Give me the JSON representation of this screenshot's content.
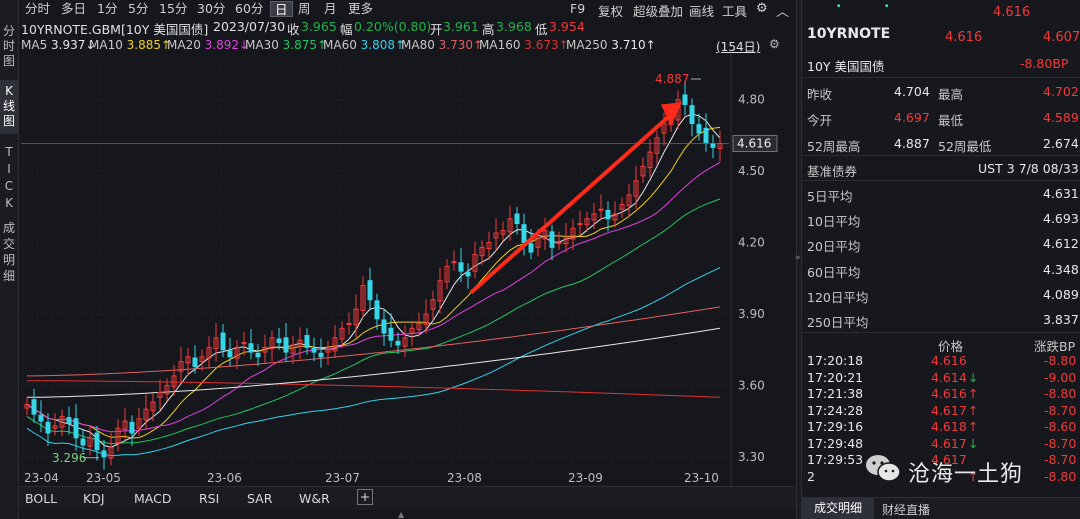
{
  "vtabs": {
    "fenshi": "分时图",
    "kline": "K线图",
    "tick": "TICK",
    "deals": "成交明细"
  },
  "periods": [
    "分时",
    "多日",
    "1分",
    "5分",
    "15分",
    "30分",
    "60分",
    "日",
    "周",
    "月",
    "更多"
  ],
  "active_period": "日",
  "toolbar": {
    "f9": "F9",
    "fuquan": "复权",
    "overlay": "超级叠加",
    "draw": "画线",
    "tools": "工具"
  },
  "info": {
    "symbol": "10YRNOTE.GBM[10Y 美国国债]",
    "date": "2023/07/30",
    "close_label": "收",
    "close": "3.965",
    "change_label": "幅",
    "change": "0.20%(0.80)",
    "open_label": "开",
    "open": "3.961",
    "high_label": "高",
    "high": "3.968",
    "low_label": "低",
    "low": "3.954"
  },
  "ma": [
    {
      "label": "MA5",
      "value": "3.937↓",
      "color": "#e8e8e8"
    },
    {
      "label": "MA10",
      "value": "3.885↑",
      "color": "#f0d020"
    },
    {
      "label": "MA20",
      "value": "3.892↓",
      "color": "#e040e0"
    },
    {
      "label": "MA30",
      "value": "3.875↑",
      "color": "#22c55e"
    },
    {
      "label": "MA60",
      "value": "3.808↑",
      "color": "#34d1ea"
    },
    {
      "label": "MA80",
      "value": "3.730↑",
      "color": "#e06060"
    },
    {
      "label": "MA160",
      "value": "3.673↑",
      "color": "#e03030"
    },
    {
      "label": "MA250",
      "value": "3.710↑",
      "color": "#e8e8e8"
    }
  ],
  "days_label": "(154日)",
  "chart_data": {
    "type": "candlestick",
    "y_ticks": [
      "4.80",
      "4.50",
      "4.20",
      "3.90",
      "3.60",
      "3.30"
    ],
    "x_ticks": [
      "23-04",
      "23-05",
      "23-06",
      "23-07",
      "23-08",
      "23-09",
      "23-10"
    ],
    "ylim": [
      3.27,
      4.95
    ],
    "max_label": "4.887",
    "min_label": "3.296",
    "current_price": "4.616",
    "closes": [
      3.52,
      3.48,
      3.45,
      3.4,
      3.43,
      3.47,
      3.44,
      3.38,
      3.35,
      3.38,
      3.33,
      3.3,
      3.34,
      3.42,
      3.45,
      3.4,
      3.46,
      3.5,
      3.53,
      3.57,
      3.6,
      3.64,
      3.7,
      3.72,
      3.68,
      3.72,
      3.76,
      3.8,
      3.75,
      3.72,
      3.76,
      3.78,
      3.74,
      3.72,
      3.76,
      3.8,
      3.78,
      3.74,
      3.77,
      3.79,
      3.76,
      3.74,
      3.72,
      3.75,
      3.8,
      3.84,
      3.86,
      3.92,
      4.02,
      3.96,
      3.88,
      3.82,
      3.79,
      3.77,
      3.8,
      3.84,
      3.86,
      3.9,
      3.96,
      4.04,
      4.1,
      4.12,
      4.08,
      4.06,
      4.15,
      4.18,
      4.2,
      4.24,
      4.25,
      4.3,
      4.28,
      4.2,
      4.16,
      4.22,
      4.25,
      4.18,
      4.2,
      4.22,
      4.26,
      4.28,
      4.3,
      4.32,
      4.34,
      4.3,
      4.32,
      4.36,
      4.4,
      4.46,
      4.52,
      4.58,
      4.64,
      4.7,
      4.72,
      4.8,
      4.78,
      4.7,
      4.66,
      4.62,
      4.6,
      4.616
    ]
  },
  "right": {
    "dot1": "•",
    "dot2": "•",
    "last_price_top": "4.616",
    "code": "10YRNOTE",
    "price1": "4.616",
    "price2": "4.607",
    "name": "10Y 美国国债",
    "change_bp": "-8.80BP",
    "stats": [
      {
        "l1": "昨收",
        "v1": "4.704",
        "c1": "white",
        "l2": "最高",
        "v2": "4.702",
        "c2": "red"
      },
      {
        "l1": "今开",
        "v1": "4.697",
        "c1": "red",
        "l2": "最低",
        "v2": "4.589",
        "c2": "red"
      },
      {
        "l1": "52周最高",
        "v1": "4.887",
        "c1": "white",
        "l2": "52周最低",
        "v2": "2.674",
        "c2": "white"
      }
    ],
    "bench_label": "基准债券",
    "bench_value": "UST 3 7/8 08/33",
    "averages": [
      {
        "label": "5日平均",
        "value": "4.631"
      },
      {
        "label": "10日平均",
        "value": "4.693"
      },
      {
        "label": "20日平均",
        "value": "4.612"
      },
      {
        "label": "60日平均",
        "value": "4.348"
      },
      {
        "label": "120日平均",
        "value": "4.089"
      },
      {
        "label": "250日平均",
        "value": "3.837"
      }
    ],
    "ticks_header": {
      "price": "价格",
      "change": "涨跌BP"
    },
    "ticks": [
      {
        "time": "17:20:18",
        "price": "4.616",
        "arrow": "",
        "change": "-8.80"
      },
      {
        "time": "17:20:21",
        "price": "4.614",
        "arrow": "↓",
        "change": "-9.00"
      },
      {
        "time": "17:21:38",
        "price": "4.616",
        "arrow": "↑",
        "change": "-8.80"
      },
      {
        "time": "17:24:28",
        "price": "4.617",
        "arrow": "↑",
        "change": "-8.70"
      },
      {
        "time": "17:29:16",
        "price": "4.618",
        "arrow": "↑",
        "change": "-8.60"
      },
      {
        "time": "17:29:48",
        "price": "4.617",
        "arrow": "↓",
        "change": "-8.70"
      },
      {
        "time": "17:29:53",
        "price": "4.617",
        "arrow": "",
        "change": "-8.70"
      },
      {
        "time": "2",
        "price": "",
        "arrow": "↑",
        "change": "-8.80"
      }
    ],
    "tab_active": "成交明细",
    "tab_other": "财经直播"
  },
  "indicators": [
    "BOLL",
    "KDJ",
    "MACD",
    "RSI",
    "SAR",
    "W&R"
  ],
  "add_indicator": "+",
  "watermark": "沧海一土狗",
  "colors": {
    "up": "#f23a3a",
    "down": "#36d6e7",
    "bg": "#16171c"
  }
}
